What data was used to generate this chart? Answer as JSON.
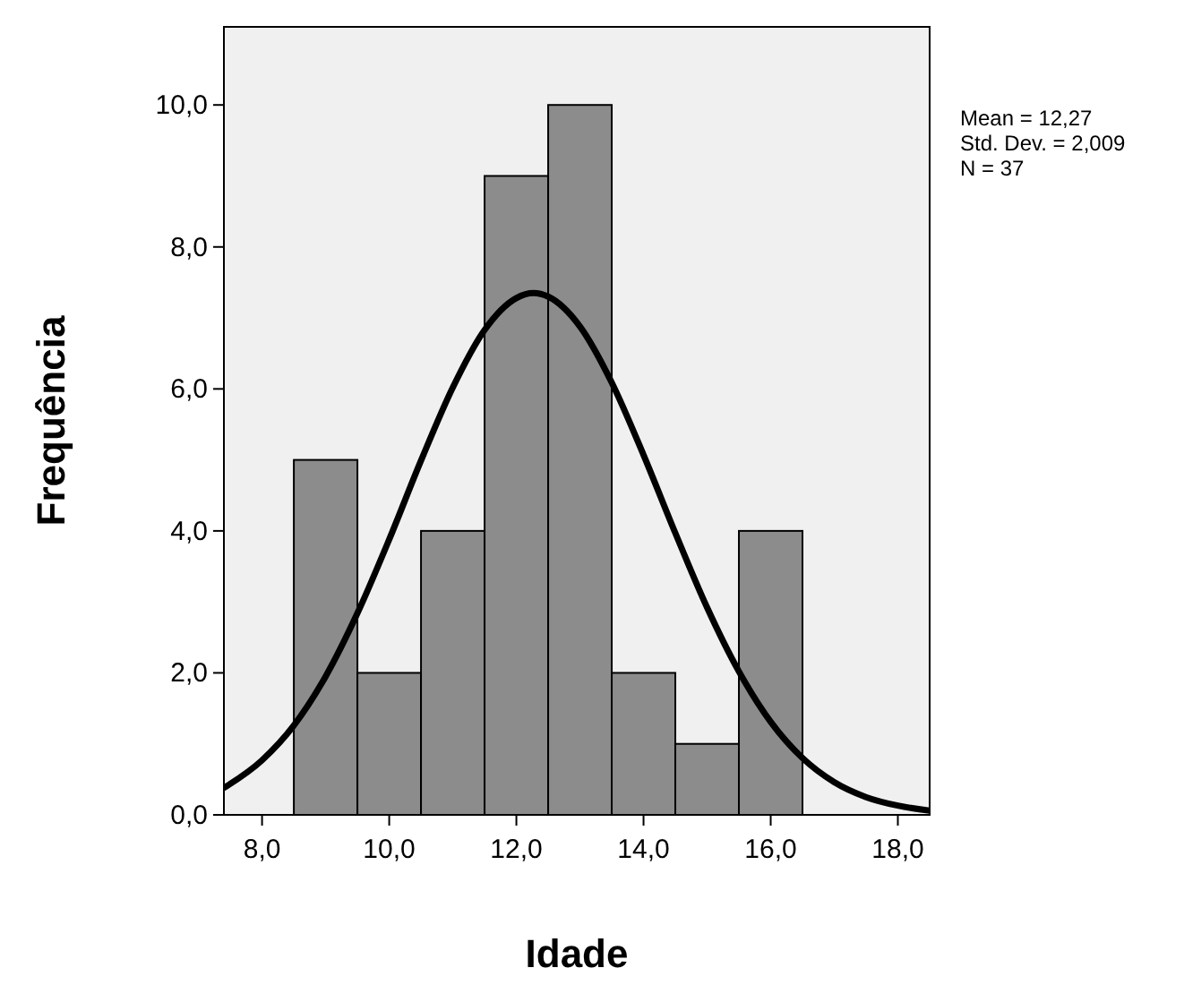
{
  "chart_data": {
    "type": "histogram",
    "xlabel": "Idade",
    "ylabel": "Frequência",
    "bins": [
      8.5,
      9.5,
      10.5,
      11.5,
      12.5,
      13.5,
      14.5,
      15.5,
      16.5
    ],
    "xlim": [
      7.4,
      18.5
    ],
    "ylim": [
      0,
      11.1
    ],
    "xticks": [
      {
        "value": 8,
        "label": "8,0"
      },
      {
        "value": 10,
        "label": "10,0"
      },
      {
        "value": 12,
        "label": "12,0"
      },
      {
        "value": 14,
        "label": "14,0"
      },
      {
        "value": 16,
        "label": "16,0"
      },
      {
        "value": 18,
        "label": "18,0"
      }
    ],
    "yticks": [
      {
        "value": 0,
        "label": "0,0"
      },
      {
        "value": 2,
        "label": "2,0"
      },
      {
        "value": 4,
        "label": "4,0"
      },
      {
        "value": 6,
        "label": "6,0"
      },
      {
        "value": 8,
        "label": "8,0"
      },
      {
        "value": 10,
        "label": "10,0"
      }
    ],
    "series": [
      {
        "type": "histogram",
        "color": "#8c8c8c",
        "values": [
          5,
          2,
          4,
          9,
          10,
          2,
          1,
          4
        ]
      },
      {
        "type": "line",
        "color": "#000000",
        "x": [
          7.4,
          8,
          8.5,
          9,
          9.5,
          10,
          10.5,
          11,
          11.5,
          12,
          12.27,
          12.5,
          13,
          13.5,
          14,
          14.5,
          15,
          15.5,
          16,
          16.5,
          17,
          17.5,
          18,
          18.5
        ],
        "values": [
          0.38,
          0.77,
          1.26,
          1.95,
          2.84,
          3.88,
          4.99,
          6.02,
          6.83,
          7.28,
          7.35,
          7.3,
          6.88,
          6.09,
          5.07,
          3.97,
          2.92,
          2.02,
          1.31,
          0.8,
          0.46,
          0.25,
          0.13,
          0.06
        ]
      }
    ],
    "annotations": [
      "Mean = 12,27",
      "Std. Dev. = 2,009",
      "N = 37"
    ]
  }
}
